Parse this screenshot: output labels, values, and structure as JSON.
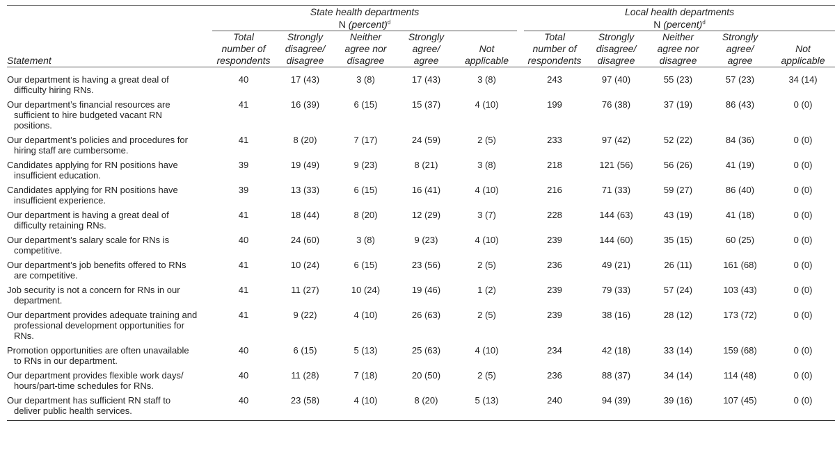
{
  "groups": {
    "state": {
      "name": "State health departments",
      "sub_n": "N",
      "sub_pct": "(percent)",
      "sup": "d"
    },
    "local": {
      "name": "Local health departments",
      "sub_n": "N",
      "sub_pct": "(percent)",
      "sup": "d"
    }
  },
  "columns": {
    "statement": "Statement",
    "state": [
      [
        "Total",
        "number of",
        "respondents"
      ],
      [
        "Strongly",
        "disagree/",
        "disagree"
      ],
      [
        "Neither",
        "agree nor",
        "disagree"
      ],
      [
        "Strongly",
        "agree/",
        "agree"
      ],
      [
        "Not",
        "applicable"
      ]
    ],
    "local": [
      [
        "Total",
        "number of",
        "respondents"
      ],
      [
        "Strongly",
        "disagree/",
        "disagree"
      ],
      [
        "Neither",
        "agree nor",
        "disagree"
      ],
      [
        "Strongly",
        "agree/",
        "agree"
      ],
      [
        "Not",
        "applicable"
      ]
    ]
  },
  "rows": [
    {
      "statement": "Our department is having a great deal of difficulty hiring RNs.",
      "state": [
        "40",
        "17 (43)",
        "3 (8)",
        "17 (43)",
        "3 (8)"
      ],
      "local": [
        "243",
        "97 (40)",
        "55 (23)",
        "57 (23)",
        "34 (14)"
      ]
    },
    {
      "statement": "Our department’s financial resources are sufficient to hire budgeted vacant RN positions.",
      "state": [
        "41",
        "16 (39)",
        "6 (15)",
        "15 (37)",
        "4 (10)"
      ],
      "local": [
        "199",
        "76 (38)",
        "37 (19)",
        "86 (43)",
        "0 (0)"
      ]
    },
    {
      "statement": "Our department’s policies and procedures for hiring staff are cumbersome.",
      "state": [
        "41",
        "8 (20)",
        "7 (17)",
        "24 (59)",
        "2 (5)"
      ],
      "local": [
        "233",
        "97 (42)",
        "52 (22)",
        "84 (36)",
        "0 (0)"
      ]
    },
    {
      "statement": "Candidates applying for RN positions have insufficient education.",
      "state": [
        "39",
        "19 (49)",
        "9 (23)",
        "8 (21)",
        "3 (8)"
      ],
      "local": [
        "218",
        "121 (56)",
        "56 (26)",
        "41 (19)",
        "0 (0)"
      ]
    },
    {
      "statement": "Candidates applying for RN positions have insufficient experience.",
      "state": [
        "39",
        "13 (33)",
        "6 (15)",
        "16 (41)",
        "4 (10)"
      ],
      "local": [
        "216",
        "71 (33)",
        "59 (27)",
        "86 (40)",
        "0 (0)"
      ]
    },
    {
      "statement": "Our department is having a great deal of difficulty retaining RNs.",
      "state": [
        "41",
        "18 (44)",
        "8 (20)",
        "12 (29)",
        "3 (7)"
      ],
      "local": [
        "228",
        "144 (63)",
        "43 (19)",
        "41 (18)",
        "0 (0)"
      ]
    },
    {
      "statement": "Our department’s salary scale for RNs is competitive.",
      "state": [
        "40",
        "24 (60)",
        "3 (8)",
        "9 (23)",
        "4 (10)"
      ],
      "local": [
        "239",
        "144 (60)",
        "35 (15)",
        "60 (25)",
        "0 (0)"
      ]
    },
    {
      "statement": "Our department’s job benefits offered to RNs are competitive.",
      "state": [
        "41",
        "10 (24)",
        "6 (15)",
        "23 (56)",
        "2 (5)"
      ],
      "local": [
        "236",
        "49 (21)",
        "26 (11)",
        "161 (68)",
        "0 (0)"
      ]
    },
    {
      "statement": "Job security is not a concern for RNs in our department.",
      "state": [
        "41",
        "11 (27)",
        "10 (24)",
        "19 (46)",
        "1 (2)"
      ],
      "local": [
        "239",
        "79 (33)",
        "57 (24)",
        "103 (43)",
        "0 (0)"
      ]
    },
    {
      "statement": "Our department provides adequate training and professional development opportunities for RNs.",
      "state": [
        "41",
        "9 (22)",
        "4 (10)",
        "26 (63)",
        "2 (5)"
      ],
      "local": [
        "239",
        "38 (16)",
        "28 (12)",
        "173 (72)",
        "0 (0)"
      ]
    },
    {
      "statement": "Promotion opportunities are often unavailable to RNs in our department.",
      "state": [
        "40",
        "6 (15)",
        "5 (13)",
        "25 (63)",
        "4 (10)"
      ],
      "local": [
        "234",
        "42 (18)",
        "33 (14)",
        "159 (68)",
        "0 (0)"
      ]
    },
    {
      "statement": "Our department provides flexible work days/ hours/part-time schedules for RNs.",
      "state": [
        "40",
        "11 (28)",
        "7 (18)",
        "20 (50)",
        "2 (5)"
      ],
      "local": [
        "236",
        "88 (37)",
        "34 (14)",
        "114 (48)",
        "0 (0)"
      ]
    },
    {
      "statement": "Our department has sufficient RN staff to deliver public health services.",
      "state": [
        "40",
        "23 (58)",
        "4 (10)",
        "8 (20)",
        "5 (13)"
      ],
      "local": [
        "240",
        "94 (39)",
        "39 (16)",
        "107 (45)",
        "0 (0)"
      ]
    }
  ]
}
